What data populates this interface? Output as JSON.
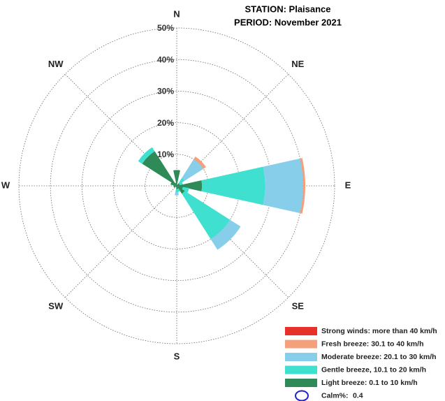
{
  "chart_data": {
    "type": "windrose",
    "title": "STATION: Plaisance",
    "subtitle": "PERIOD: November 2021",
    "categories": [
      "N",
      null,
      "NE",
      null,
      "E",
      null,
      "SE",
      null,
      "S",
      null,
      "SW",
      null,
      "W",
      null,
      "NW",
      null
    ],
    "rlim": [
      0,
      50
    ],
    "rticks": [
      {
        "value": 10,
        "label": "10%"
      },
      {
        "value": 20,
        "label": "20%"
      },
      {
        "value": 30,
        "label": "30%"
      },
      {
        "value": 40,
        "label": "40%"
      },
      {
        "value": 50,
        "label": "50%"
      }
    ],
    "grid": true,
    "legend": "lower right",
    "series": [
      {
        "name": "Light breeze: 0.1 to 10 km/h",
        "color": "#2e8b57",
        "values": [
          5,
          0.5,
          1,
          1,
          8,
          2,
          3,
          1,
          1,
          0.5,
          0.5,
          1,
          1,
          2,
          13,
          1
        ]
      },
      {
        "name": "Gentle breeze, 10.1 to 20 km/h",
        "color": "#40e0d0",
        "values": [
          0,
          0,
          2,
          1,
          20,
          2,
          17,
          1,
          1,
          0,
          0,
          0,
          0,
          0,
          1.5,
          0
        ]
      },
      {
        "name": "Moderate breeze: 20.1 to 30 km/h",
        "color": "#87ceeb",
        "values": [
          0,
          0,
          7,
          0,
          12,
          0,
          4,
          0,
          1,
          0,
          0,
          0,
          0,
          0,
          0,
          0
        ]
      },
      {
        "name": "Fresh breeze: 30.1 to 40 km/h",
        "color": "#f4a07a",
        "values": [
          0,
          0,
          1,
          0,
          0.7,
          0,
          0,
          0,
          0,
          0,
          0,
          0,
          0,
          0,
          0,
          0
        ]
      },
      {
        "name": "Strong winds: more than 40 km/h",
        "color": "#e8302a",
        "values": [
          0,
          0,
          0,
          0,
          0,
          0,
          0,
          0,
          0,
          0,
          0,
          0,
          0,
          0,
          0,
          0
        ]
      }
    ],
    "calm_label": "Calm%:",
    "calm": 0.4
  }
}
